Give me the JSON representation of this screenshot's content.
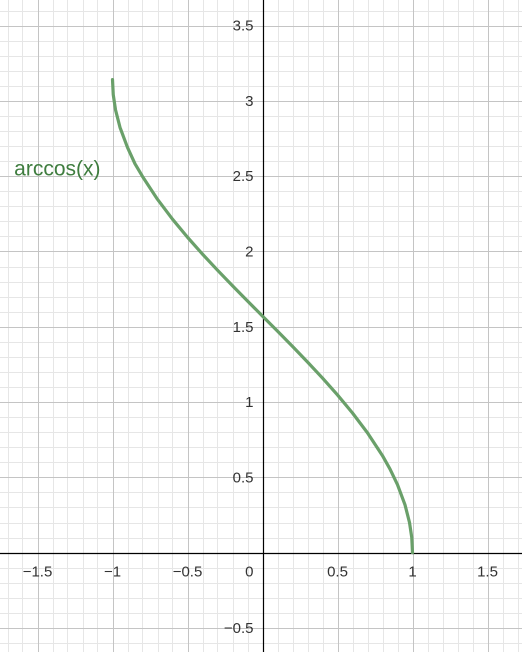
{
  "chart_data": {
    "type": "line",
    "title": "",
    "xlabel": "",
    "ylabel": "",
    "xlim": [
      -1.75,
      1.73
    ],
    "ylim": [
      -0.66,
      3.67
    ],
    "grid": true,
    "major_step": 0.5,
    "minor_step": 0.1,
    "x_ticks": [
      -1.5,
      -1,
      -0.5,
      0,
      0.5,
      1,
      1.5
    ],
    "x_tick_labels": [
      "−1.5",
      "−1",
      "−0.5",
      "0",
      "0.5",
      "1",
      "1.5"
    ],
    "y_ticks": [
      -0.5,
      0.5,
      1,
      1.5,
      2,
      2.5,
      3,
      3.5
    ],
    "y_tick_labels": [
      "−0.5",
      "0.5",
      "1",
      "1.5",
      "2",
      "2.5",
      "3",
      "3.5"
    ],
    "series": [
      {
        "name": "arccos(x)",
        "color": "#6aa06a",
        "label_color": "#3f7d3f",
        "x": [
          -1,
          -0.995,
          -0.98,
          -0.95,
          -0.9,
          -0.85,
          -0.8,
          -0.7,
          -0.6,
          -0.5,
          -0.4,
          -0.3,
          -0.2,
          -0.1,
          0,
          0.1,
          0.2,
          0.3,
          0.4,
          0.5,
          0.6,
          0.7,
          0.8,
          0.85,
          0.9,
          0.95,
          0.98,
          0.995,
          1
        ],
        "y": [
          3.1416,
          3.0414,
          2.9413,
          2.824,
          2.6906,
          2.5824,
          2.4981,
          2.3462,
          2.2143,
          2.0944,
          1.9823,
          1.8755,
          1.7722,
          1.671,
          1.5708,
          1.4706,
          1.3694,
          1.2661,
          1.1593,
          1.0472,
          0.9273,
          0.7954,
          0.6435,
          0.5548,
          0.451,
          0.3176,
          0.2003,
          0.1002,
          0
        ]
      }
    ]
  }
}
